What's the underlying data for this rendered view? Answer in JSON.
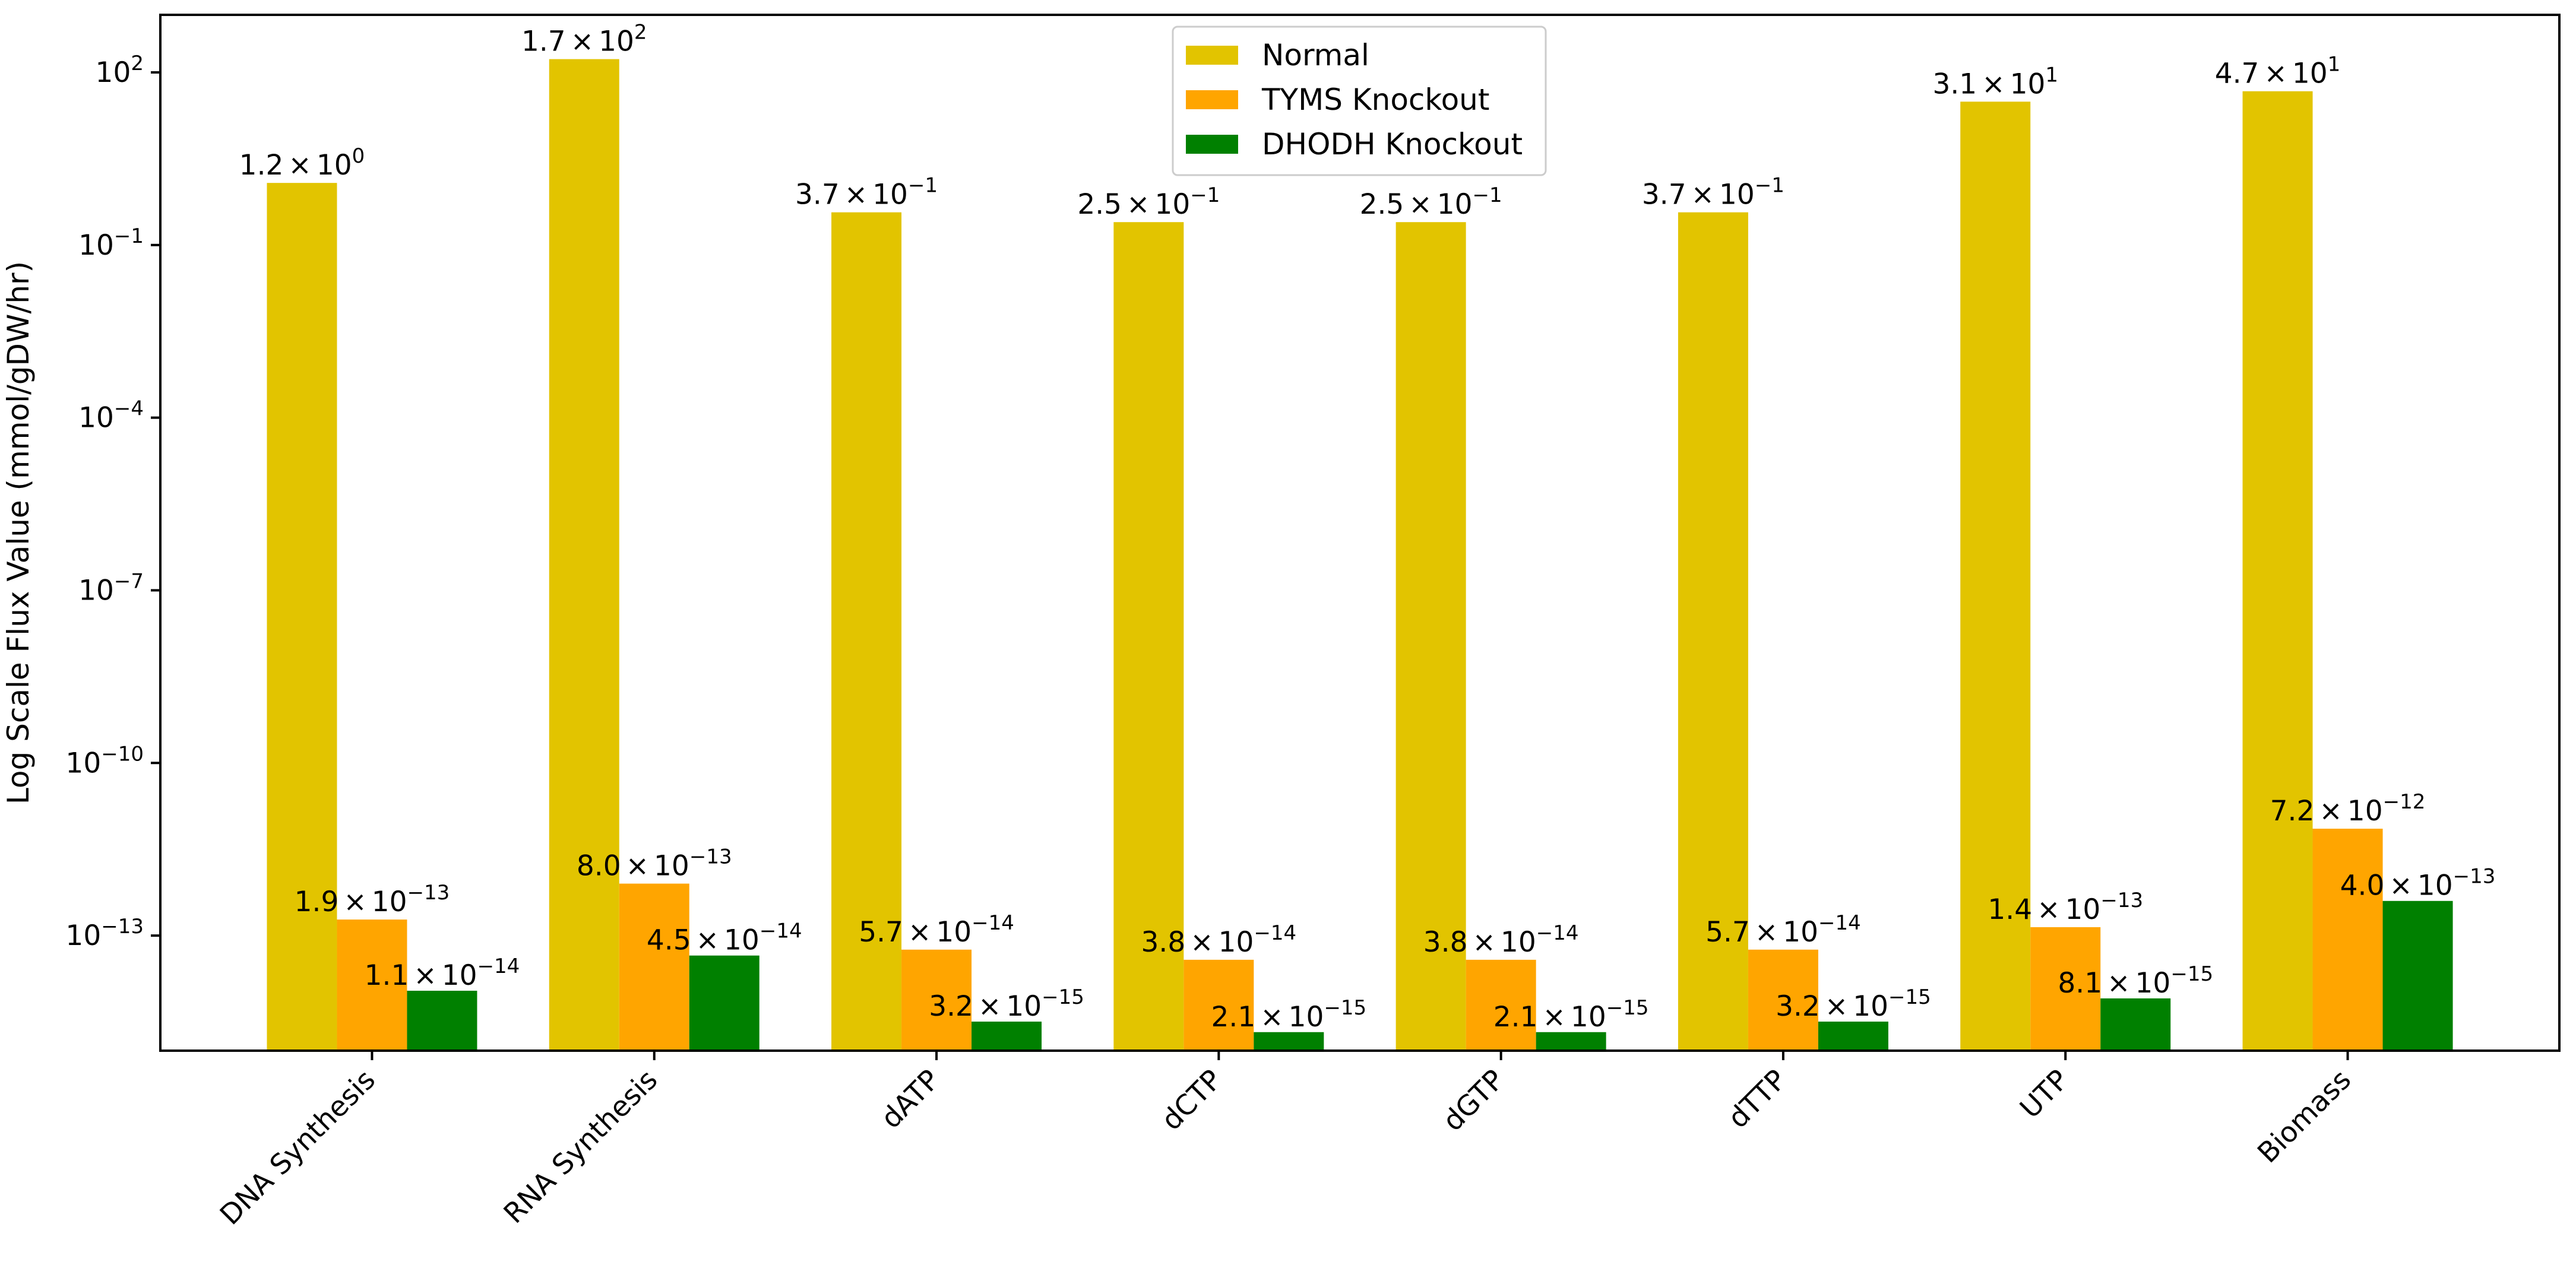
{
  "chart_data": {
    "type": "bar",
    "title": "",
    "xlabel": "",
    "ylabel": "Log Scale Flux Value (mmol/gDW/hr)",
    "yscale": "log",
    "ylim": [
      1e-15,
      1000
    ],
    "yticks": [
      {
        "value": 100,
        "label": "10",
        "exp": "2"
      },
      {
        "value": 0.1,
        "label": "10",
        "exp": "−1"
      },
      {
        "value": 0.0001,
        "label": "10",
        "exp": "−4"
      },
      {
        "value": 1e-07,
        "label": "10",
        "exp": "−7"
      },
      {
        "value": 1e-10,
        "label": "10",
        "exp": "−10"
      },
      {
        "value": 1e-13,
        "label": "10",
        "exp": "−13"
      }
    ],
    "categories": [
      "DNA Synthesis",
      "RNA Synthesis",
      "dATP",
      "dCTP",
      "dGTP",
      "dTTP",
      "UTP",
      "Biomass"
    ],
    "legend_position": "upper-center",
    "series": [
      {
        "name": "Normal",
        "color": "#e2c400",
        "values": [
          1.2,
          170,
          0.37,
          0.25,
          0.25,
          0.37,
          31,
          47
        ],
        "labels": [
          {
            "mant": "1.2",
            "exp": "0"
          },
          {
            "mant": "1.7",
            "exp": "2"
          },
          {
            "mant": "3.7",
            "exp": "−1"
          },
          {
            "mant": "2.5",
            "exp": "−1"
          },
          {
            "mant": "2.5",
            "exp": "−1"
          },
          {
            "mant": "3.7",
            "exp": "−1"
          },
          {
            "mant": "3.1",
            "exp": "1"
          },
          {
            "mant": "4.7",
            "exp": "1"
          }
        ]
      },
      {
        "name": "TYMS Knockout",
        "color": "#ffa500",
        "values": [
          1.9e-13,
          8e-13,
          5.7e-14,
          3.8e-14,
          3.8e-14,
          5.7e-14,
          1.4e-13,
          7.2e-12
        ],
        "labels": [
          {
            "mant": "1.9",
            "exp": "−13"
          },
          {
            "mant": "8.0",
            "exp": "−13"
          },
          {
            "mant": "5.7",
            "exp": "−14"
          },
          {
            "mant": "3.8",
            "exp": "−14"
          },
          {
            "mant": "3.8",
            "exp": "−14"
          },
          {
            "mant": "5.7",
            "exp": "−14"
          },
          {
            "mant": "1.4",
            "exp": "−13"
          },
          {
            "mant": "7.2",
            "exp": "−12"
          }
        ]
      },
      {
        "name": "DHODH Knockout",
        "color": "#008000",
        "values": [
          1.1e-14,
          4.5e-14,
          3.2e-15,
          2.1e-15,
          2.1e-15,
          3.2e-15,
          8.1e-15,
          4e-13
        ],
        "labels": [
          {
            "mant": "1.1",
            "exp": "−14"
          },
          {
            "mant": "4.5",
            "exp": "−14"
          },
          {
            "mant": "3.2",
            "exp": "−15"
          },
          {
            "mant": "2.1",
            "exp": "−15"
          },
          {
            "mant": "2.1",
            "exp": "−15"
          },
          {
            "mant": "3.2",
            "exp": "−15"
          },
          {
            "mant": "8.1",
            "exp": "−15"
          },
          {
            "mant": "4.0",
            "exp": "−13"
          }
        ]
      }
    ]
  }
}
